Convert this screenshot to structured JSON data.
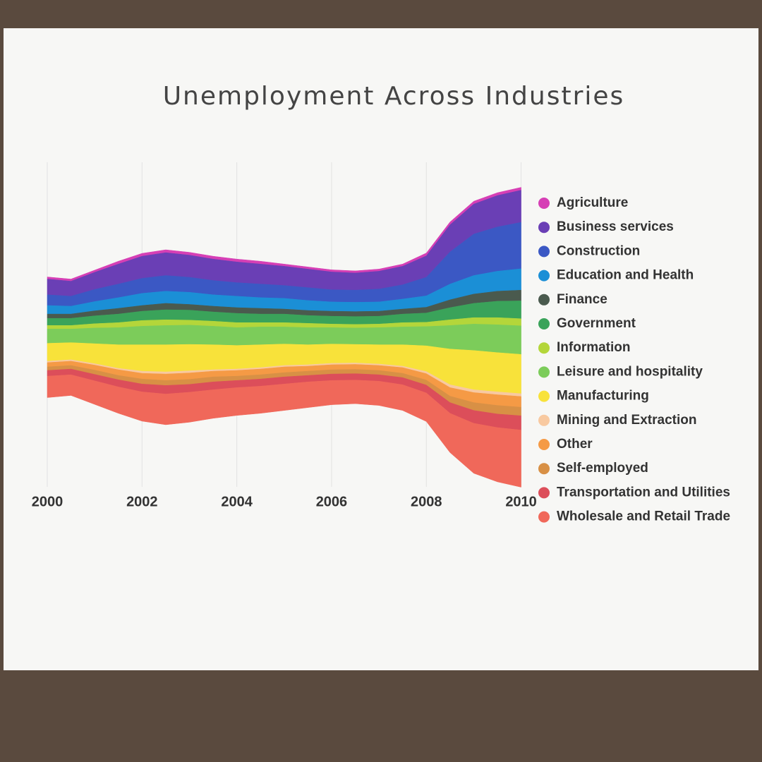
{
  "chart_data": {
    "type": "streamgraph",
    "title": "Unemployment Across Industries",
    "x": [
      2000,
      2000.5,
      2001,
      2001.5,
      2002,
      2002.5,
      2003,
      2003.5,
      2004,
      2004.5,
      2005,
      2005.5,
      2006,
      2006.5,
      2007,
      2007.5,
      2008,
      2008.5,
      2009,
      2009.5,
      2010
    ],
    "xlim": [
      2000,
      2010.2
    ],
    "xticks": [
      2000,
      2002,
      2004,
      2006,
      2008,
      2010
    ],
    "grid": true,
    "legend": "right",
    "series": [
      {
        "name": "Agriculture",
        "color": "#d63fb5",
        "values": [
          3,
          3,
          3,
          4,
          4,
          4,
          4,
          4,
          4,
          4,
          3,
          3,
          3,
          3,
          3,
          3,
          4,
          4,
          4,
          4,
          4
        ]
      },
      {
        "name": "Business services",
        "color": "#6a3fb5",
        "values": [
          22,
          21,
          24,
          28,
          31,
          32,
          31,
          30,
          29,
          28,
          27,
          26,
          25,
          24,
          25,
          26,
          30,
          38,
          42,
          44,
          45
        ]
      },
      {
        "name": "Construction",
        "color": "#3b58c4",
        "values": [
          15,
          14,
          17,
          19,
          21,
          22,
          21,
          20,
          19,
          19,
          18,
          18,
          17,
          17,
          18,
          20,
          26,
          45,
          58,
          62,
          65
        ]
      },
      {
        "name": "Education and Health",
        "color": "#1b8fd6",
        "values": [
          12,
          11,
          13,
          15,
          17,
          17,
          17,
          16,
          16,
          15,
          15,
          14,
          13,
          13,
          13,
          14,
          16,
          22,
          26,
          28,
          30
        ]
      },
      {
        "name": "Finance",
        "color": "#4a5a4e",
        "values": [
          6,
          6,
          7,
          8,
          8,
          9,
          8,
          8,
          8,
          8,
          7,
          7,
          7,
          7,
          7,
          7,
          8,
          11,
          13,
          14,
          15
        ]
      },
      {
        "name": "Government",
        "color": "#3aa35a",
        "values": [
          10,
          10,
          11,
          12,
          13,
          14,
          14,
          13,
          13,
          12,
          12,
          11,
          11,
          11,
          11,
          12,
          13,
          17,
          20,
          23,
          25
        ]
      },
      {
        "name": "Information",
        "color": "#b4d63a",
        "values": [
          5,
          5,
          6,
          7,
          8,
          8,
          7,
          7,
          7,
          6,
          6,
          6,
          5,
          5,
          5,
          6,
          6,
          8,
          9,
          10,
          10
        ]
      },
      {
        "name": "Leisure and hospitality",
        "color": "#7ccc5a",
        "values": [
          20,
          19,
          22,
          24,
          26,
          27,
          27,
          26,
          25,
          25,
          24,
          24,
          23,
          23,
          24,
          25,
          27,
          33,
          37,
          39,
          40
        ]
      },
      {
        "name": "Manufacturing",
        "color": "#f8e23a",
        "values": [
          25,
          24,
          28,
          33,
          37,
          38,
          37,
          35,
          33,
          32,
          30,
          28,
          27,
          26,
          27,
          30,
          36,
          50,
          55,
          55,
          55
        ]
      },
      {
        "name": "Mining and Extraction",
        "color": "#f8c9a0",
        "values": [
          2,
          2,
          2,
          2,
          3,
          3,
          3,
          2,
          2,
          2,
          2,
          2,
          2,
          2,
          2,
          2,
          3,
          4,
          4,
          4,
          4
        ]
      },
      {
        "name": "Other",
        "color": "#f59a45",
        "values": [
          6,
          6,
          7,
          8,
          8,
          9,
          9,
          8,
          8,
          8,
          8,
          7,
          7,
          7,
          7,
          8,
          9,
          12,
          14,
          15,
          15
        ]
      },
      {
        "name": "Self-employed",
        "color": "#d89045",
        "values": [
          5,
          5,
          6,
          6,
          7,
          7,
          7,
          7,
          6,
          6,
          6,
          6,
          6,
          6,
          6,
          6,
          7,
          9,
          11,
          12,
          12
        ]
      },
      {
        "name": "Transportation and Utilities",
        "color": "#dc4e5a",
        "values": [
          8,
          8,
          9,
          10,
          11,
          12,
          11,
          11,
          10,
          10,
          10,
          9,
          9,
          9,
          9,
          10,
          11,
          15,
          18,
          19,
          20
        ]
      },
      {
        "name": "Wholesale and Retail Trade",
        "color": "#f0685a",
        "values": [
          30,
          29,
          33,
          37,
          41,
          43,
          42,
          40,
          39,
          38,
          37,
          36,
          34,
          33,
          34,
          36,
          40,
          55,
          70,
          76,
          80
        ]
      }
    ]
  }
}
